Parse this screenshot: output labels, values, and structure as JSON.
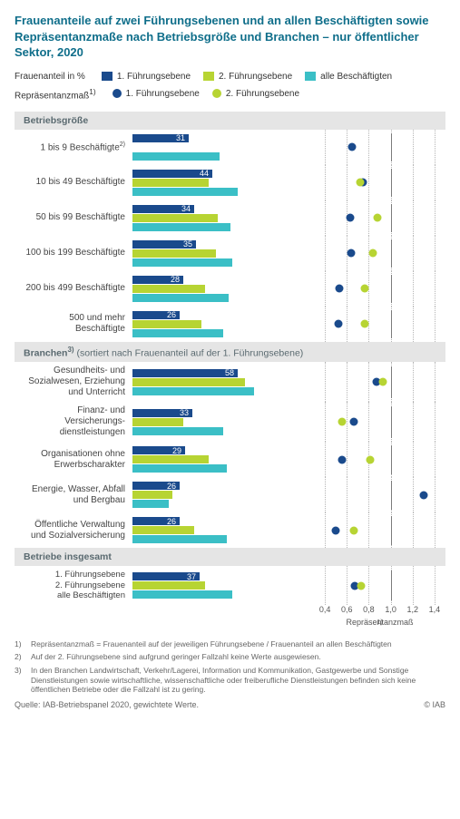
{
  "title": "Frauenanteile auf zwei Führungsebenen und an allen Beschäftigten sowie Repräsentanzmaße nach Betriebsgröße und Branchen – nur öffentlicher Sektor, 2020",
  "legend_pct_label": "Frauenanteil in %",
  "legend_rep_label": "Repräsentanzmaß",
  "legend_rep_sup": "1)",
  "series": {
    "fe1": {
      "label": "1. Führungsebene",
      "color": "#1a4a8c"
    },
    "fe2": {
      "label": "2. Führungsebene",
      "color": "#b7d433"
    },
    "all": {
      "label": "alle Beschäftigten",
      "color": "#3bbfc6"
    }
  },
  "rep_series": {
    "r1": {
      "label": "1. Führungsebene",
      "color": "#1a4a8c"
    },
    "r2": {
      "label": "2. Führungsebene",
      "color": "#b7d433"
    }
  },
  "bar_axis": {
    "min": 0,
    "max": 100
  },
  "dot_axis": {
    "min": 0.3,
    "max": 1.5,
    "ticks": [
      "0,4",
      "0,6",
      "0,8",
      "1,0",
      "1,2",
      "1,4"
    ],
    "tick_vals": [
      0.4,
      0.6,
      0.8,
      1.0,
      1.2,
      1.4
    ],
    "ref": 1.0,
    "title": "Repräsentanzmaß",
    "title_sup": "1)"
  },
  "sections": [
    {
      "head": "Betriebsgröße",
      "head_sup": "",
      "rows": [
        {
          "label": "1 bis 9 Beschäftigte",
          "label_sup": "2)",
          "bars": {
            "fe1": 31,
            "fe2": null,
            "all": 48
          },
          "bar_label": 31,
          "dots": {
            "r1": 0.65,
            "r2": null
          }
        },
        {
          "label": "10 bis 49 Beschäftigte",
          "bars": {
            "fe1": 44,
            "fe2": 42,
            "all": 58
          },
          "bar_label": 44,
          "dots": {
            "r1": 0.75,
            "r2": 0.72
          }
        },
        {
          "label": "50 bis 99 Beschäftigte",
          "bars": {
            "fe1": 34,
            "fe2": 47,
            "all": 54
          },
          "bar_label": 34,
          "dots": {
            "r1": 0.63,
            "r2": 0.88
          }
        },
        {
          "label": "100 bis 199 Beschäftigte",
          "bars": {
            "fe1": 35,
            "fe2": 46,
            "all": 55
          },
          "bar_label": 35,
          "dots": {
            "r1": 0.64,
            "r2": 0.84
          }
        },
        {
          "label": "200 bis 499 Beschäftigte",
          "bars": {
            "fe1": 28,
            "fe2": 40,
            "all": 53
          },
          "bar_label": 28,
          "dots": {
            "r1": 0.53,
            "r2": 0.76
          }
        },
        {
          "label": "500 und mehr Beschäftigte",
          "bars": {
            "fe1": 26,
            "fe2": 38,
            "all": 50
          },
          "bar_label": 26,
          "dots": {
            "r1": 0.52,
            "r2": 0.76
          }
        }
      ]
    },
    {
      "head": "Branchen",
      "head_sup": "3)",
      "head_tail": " (sortiert nach Frauenanteil auf der 1. Führungsebene)",
      "rows": [
        {
          "label": "Gesundheits- und Sozialwesen, Erziehung und Unterricht",
          "bars": {
            "fe1": 58,
            "fe2": 62,
            "all": 67
          },
          "bar_label": 58,
          "dots": {
            "r1": 0.87,
            "r2": 0.93
          }
        },
        {
          "label": "Finanz- und Versicherungs­dienstleistungen",
          "bars": {
            "fe1": 33,
            "fe2": 28,
            "all": 50
          },
          "bar_label": 33,
          "dots": {
            "r1": 0.66,
            "r2": 0.56
          }
        },
        {
          "label": "Organisationen ohne Erwerbscharakter",
          "bars": {
            "fe1": 29,
            "fe2": 42,
            "all": 52
          },
          "bar_label": 29,
          "dots": {
            "r1": 0.56,
            "r2": 0.81
          }
        },
        {
          "label": "Energie, Wasser, Abfall und Bergbau",
          "bars": {
            "fe1": 26,
            "fe2": 22,
            "all": 20
          },
          "bar_label": 26,
          "dots": {
            "r1": 1.3,
            "r2": null
          }
        },
        {
          "label": "Öffentliche Verwaltung und Sozialversicherung",
          "bars": {
            "fe1": 26,
            "fe2": 34,
            "all": 52
          },
          "bar_label": 26,
          "dots": {
            "r1": 0.5,
            "r2": 0.66
          }
        }
      ]
    },
    {
      "head": "Betriebe insgesamt",
      "head_sup": "",
      "rows": [
        {
          "total_labels": [
            "1. Führungsebene",
            "2. Führungsebene",
            "alle Beschäftigten"
          ],
          "bars": {
            "fe1": 37,
            "fe2": 40,
            "all": 55
          },
          "bar_label": 37,
          "dots": {
            "r1": 0.67,
            "r2": 0.73
          }
        }
      ]
    }
  ],
  "footnotes": [
    {
      "n": "1)",
      "t": "Repräsentanzmaß = Frauenanteil auf der jeweiligen Führungsebene / Frauenanteil an allen Beschäftigten"
    },
    {
      "n": "2)",
      "t": "Auf der 2. Führungsebene sind aufgrund geringer Fallzahl keine Werte ausgewiesen."
    },
    {
      "n": "3)",
      "t": "In den Branchen Landwirtschaft, Verkehr/Lagerei, Information und Kommunikation, Gastgewerbe und Sonstige Dienstleistungen sowie wirtschaftliche, wissenschaftliche oder freiberufliche Dienstleistungen befinden sich keine öffentlichen Betriebe oder die Fallzahl ist zu gering."
    }
  ],
  "source_left": "Quelle: IAB-Betriebspanel 2020, gewichtete Werte.",
  "source_right": "© IAB",
  "colors": {
    "title": "#0f6e8a",
    "band0": "#ffffff",
    "band1": "#f2f2f2",
    "grid": "#b5b5b5",
    "ref": "#7b7b7b",
    "sectionHead": "#e5e5e5"
  }
}
